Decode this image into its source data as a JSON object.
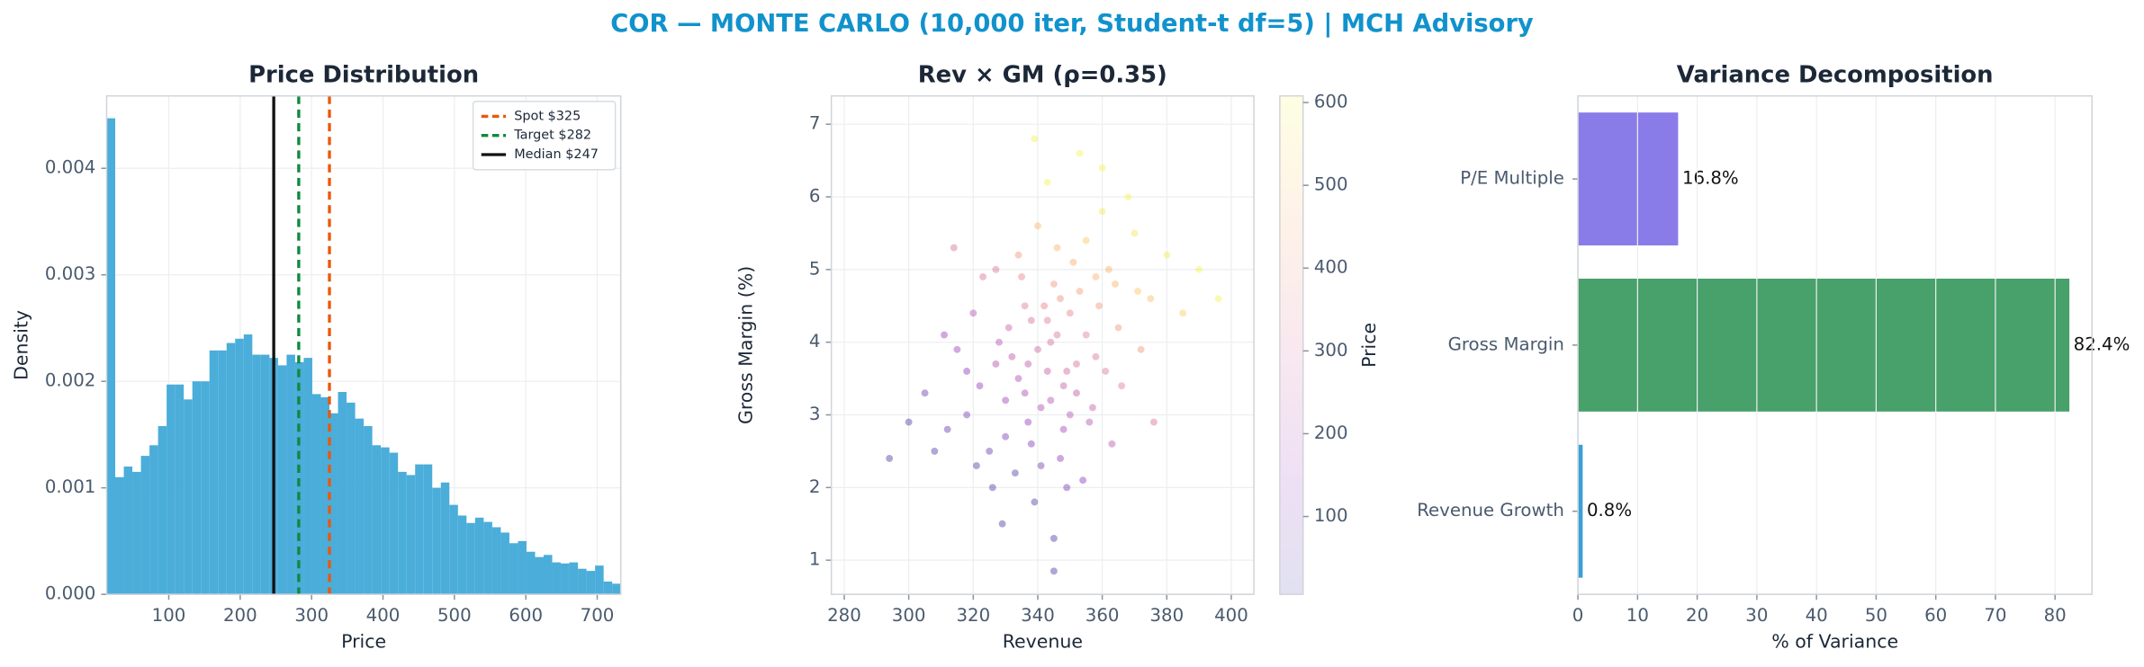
{
  "title": "COR — MONTE CARLO (10,000 iter, Student-t df=5) | MCH Advisory",
  "chart_data": [
    {
      "type": "histogram",
      "title": "Price Distribution",
      "x_label": "Price",
      "y_label": "Density",
      "color": "#4badd9",
      "bins": [
        13,
        25,
        37,
        49,
        61,
        73,
        85,
        97,
        109,
        121,
        133,
        145,
        157,
        169,
        181,
        193,
        205,
        217,
        229,
        241,
        253,
        265,
        277,
        289,
        301,
        313,
        325,
        337,
        349,
        361,
        373,
        385,
        397,
        409,
        421,
        433,
        445,
        457,
        469,
        481,
        493,
        505,
        517,
        529,
        541,
        553,
        565,
        577,
        589,
        601,
        613,
        625,
        637,
        649,
        661,
        673,
        685,
        697,
        709,
        721,
        733
      ],
      "values": [
        0.00447,
        0.0011,
        0.0012,
        0.00115,
        0.0013,
        0.0014,
        0.00158,
        0.00197,
        0.00197,
        0.00183,
        0.002,
        0.002,
        0.00229,
        0.00229,
        0.00236,
        0.0024,
        0.00244,
        0.00225,
        0.00225,
        0.00222,
        0.00215,
        0.00225,
        0.00218,
        0.00222,
        0.00188,
        0.00185,
        0.0017,
        0.0019,
        0.0018,
        0.00165,
        0.00158,
        0.0014,
        0.00138,
        0.00133,
        0.00115,
        0.00112,
        0.00122,
        0.00122,
        0.001,
        0.00105,
        0.00084,
        0.00074,
        0.00067,
        0.00072,
        0.00068,
        0.00063,
        0.00058,
        0.00048,
        0.0005,
        0.0004,
        0.00035,
        0.00037,
        0.0003,
        0.00029,
        0.0003,
        0.00024,
        0.00022,
        0.00027,
        0.00012,
        0.0001
      ],
      "xlim": [
        13,
        733
      ],
      "xticks": [
        100,
        200,
        300,
        400,
        500,
        600,
        700
      ],
      "ylim": [
        0,
        0.00468
      ],
      "yticks": [
        {
          "value": 0,
          "label": "0.000"
        },
        0.001,
        0.002,
        0.003,
        0.004
      ],
      "grid": true,
      "legend": "upper right",
      "reference_lines": [
        {
          "name": "Spot $325",
          "value": 325,
          "color": "#e8590c",
          "style": "dashed"
        },
        {
          "name": "Target $282",
          "value": 282,
          "color": "#0e8a3e",
          "style": "dashed"
        },
        {
          "name": "Median $247",
          "value": 247,
          "color": "#111111",
          "style": "solid"
        }
      ]
    },
    {
      "type": "scatter",
      "title": "Rev × GM (ρ=0.35)",
      "x_label": "Revenue",
      "y_label": "Gross Margin (%)",
      "x": [
        343,
        330,
        355,
        348,
        336,
        362,
        325,
        340,
        352,
        318,
        345,
        370,
        333,
        358,
        341,
        327,
        350,
        365,
        338,
        346,
        312,
        356,
        344,
        331,
        375,
        322,
        349,
        339,
        360,
        334,
        353,
        347,
        328,
        342,
        366,
        315,
        351,
        337,
        380,
        308,
        357,
        343,
        329,
        364,
        335,
        348,
        320,
        354,
        340,
        372,
        326,
        359,
        332,
        345,
        368,
        305,
        350,
        338,
        361,
        323,
        385,
        346,
        330,
        355,
        341,
        318,
        363,
        347,
        334,
        390,
        300,
        352,
        344,
        327,
        358,
        336,
        349,
        371,
        311,
        343,
        360,
        321,
        353,
        339,
        294,
        396,
        345,
        314,
        376,
        337
      ],
      "values": [
        3.6,
        3.2,
        4.1,
        2.8,
        4.5,
        5.0,
        2.5,
        3.9,
        3.3,
        3.0,
        4.8,
        5.5,
        2.2,
        3.8,
        3.1,
        3.7,
        4.4,
        4.2,
        2.6,
        5.3,
        2.8,
        2.9,
        4.0,
        4.2,
        4.6,
        3.4,
        3.6,
        1.8,
        5.8,
        3.5,
        4.7,
        2.4,
        4.0,
        4.5,
        3.4,
        3.9,
        5.1,
        2.9,
        5.2,
        2.5,
        3.1,
        6.2,
        1.5,
        4.8,
        4.9,
        3.4,
        4.4,
        2.1,
        5.6,
        3.9,
        2.0,
        4.5,
        3.8,
        1.3,
        6.0,
        3.3,
        3.0,
        4.3,
        3.6,
        4.9,
        4.4,
        4.1,
        2.7,
        5.4,
        2.3,
        3.6,
        2.6,
        4.6,
        5.2,
        5.0,
        2.9,
        3.7,
        3.2,
        5.0,
        4.9,
        3.3,
        2.0,
        4.7,
        4.1,
        4.3,
        6.4,
        2.3,
        6.6,
        6.8,
        2.4,
        4.6,
        0.85,
        5.3,
        2.9,
        3.7
      ],
      "color_values": [
        250,
        170,
        340,
        180,
        330,
        460,
        70,
        280,
        240,
        100,
        400,
        560,
        40,
        320,
        200,
        210,
        360,
        400,
        120,
        470,
        60,
        220,
        300,
        260,
        490,
        140,
        280,
        20,
        580,
        200,
        420,
        140,
        220,
        350,
        330,
        160,
        450,
        150,
        580,
        30,
        260,
        590,
        10,
        470,
        360,
        250,
        220,
        130,
        480,
        400,
        20,
        410,
        230,
        10,
        600,
        70,
        220,
        300,
        330,
        310,
        520,
        320,
        100,
        510,
        90,
        130,
        230,
        380,
        400,
        600,
        20,
        300,
        220,
        320,
        460,
        190,
        90,
        510,
        160,
        330,
        600,
        30,
        600,
        590,
        10,
        590,
        10,
        300,
        300,
        240
      ],
      "colormap": "plasma",
      "colorbar_label": "Price",
      "clim": [
        6,
        608
      ],
      "cticks": [
        100,
        200,
        300,
        400,
        500,
        600
      ],
      "xlim": [
        276,
        407
      ],
      "xticks": [
        280,
        300,
        320,
        340,
        360,
        380,
        400
      ],
      "ylim": [
        0.53,
        7.39
      ],
      "yticks": [
        1,
        2,
        3,
        4,
        5,
        6,
        7
      ],
      "grid": true
    },
    {
      "type": "barh",
      "title": "Variance Decomposition",
      "x_label": "% of Variance",
      "categories": [
        "P/E Multiple",
        "Gross Margin",
        "Revenue Growth"
      ],
      "values": [
        16.8,
        82.4,
        0.8
      ],
      "value_labels": [
        "16.8%",
        "82.4%",
        "0.8%"
      ],
      "colors": [
        "#8a7ce8",
        "#48a06a",
        "#3aa0d8"
      ],
      "xlim": [
        0,
        86.2
      ],
      "xticks": [
        0,
        10,
        20,
        30,
        40,
        50,
        60,
        70,
        80
      ],
      "grid": true
    }
  ]
}
